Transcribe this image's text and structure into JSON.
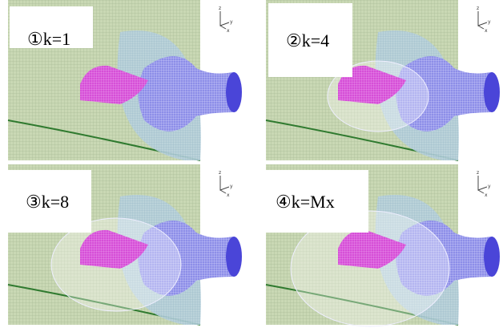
{
  "panels": [
    {
      "label": "①k=1",
      "triad": [
        "z",
        "y",
        "x"
      ]
    },
    {
      "label": "②k=4",
      "triad": [
        "z",
        "y",
        "x"
      ]
    },
    {
      "label": "③k=8",
      "triad": [
        "z",
        "y",
        "x"
      ]
    },
    {
      "label": "④k=Mx",
      "triad": [
        "z",
        "y",
        "x"
      ]
    }
  ]
}
